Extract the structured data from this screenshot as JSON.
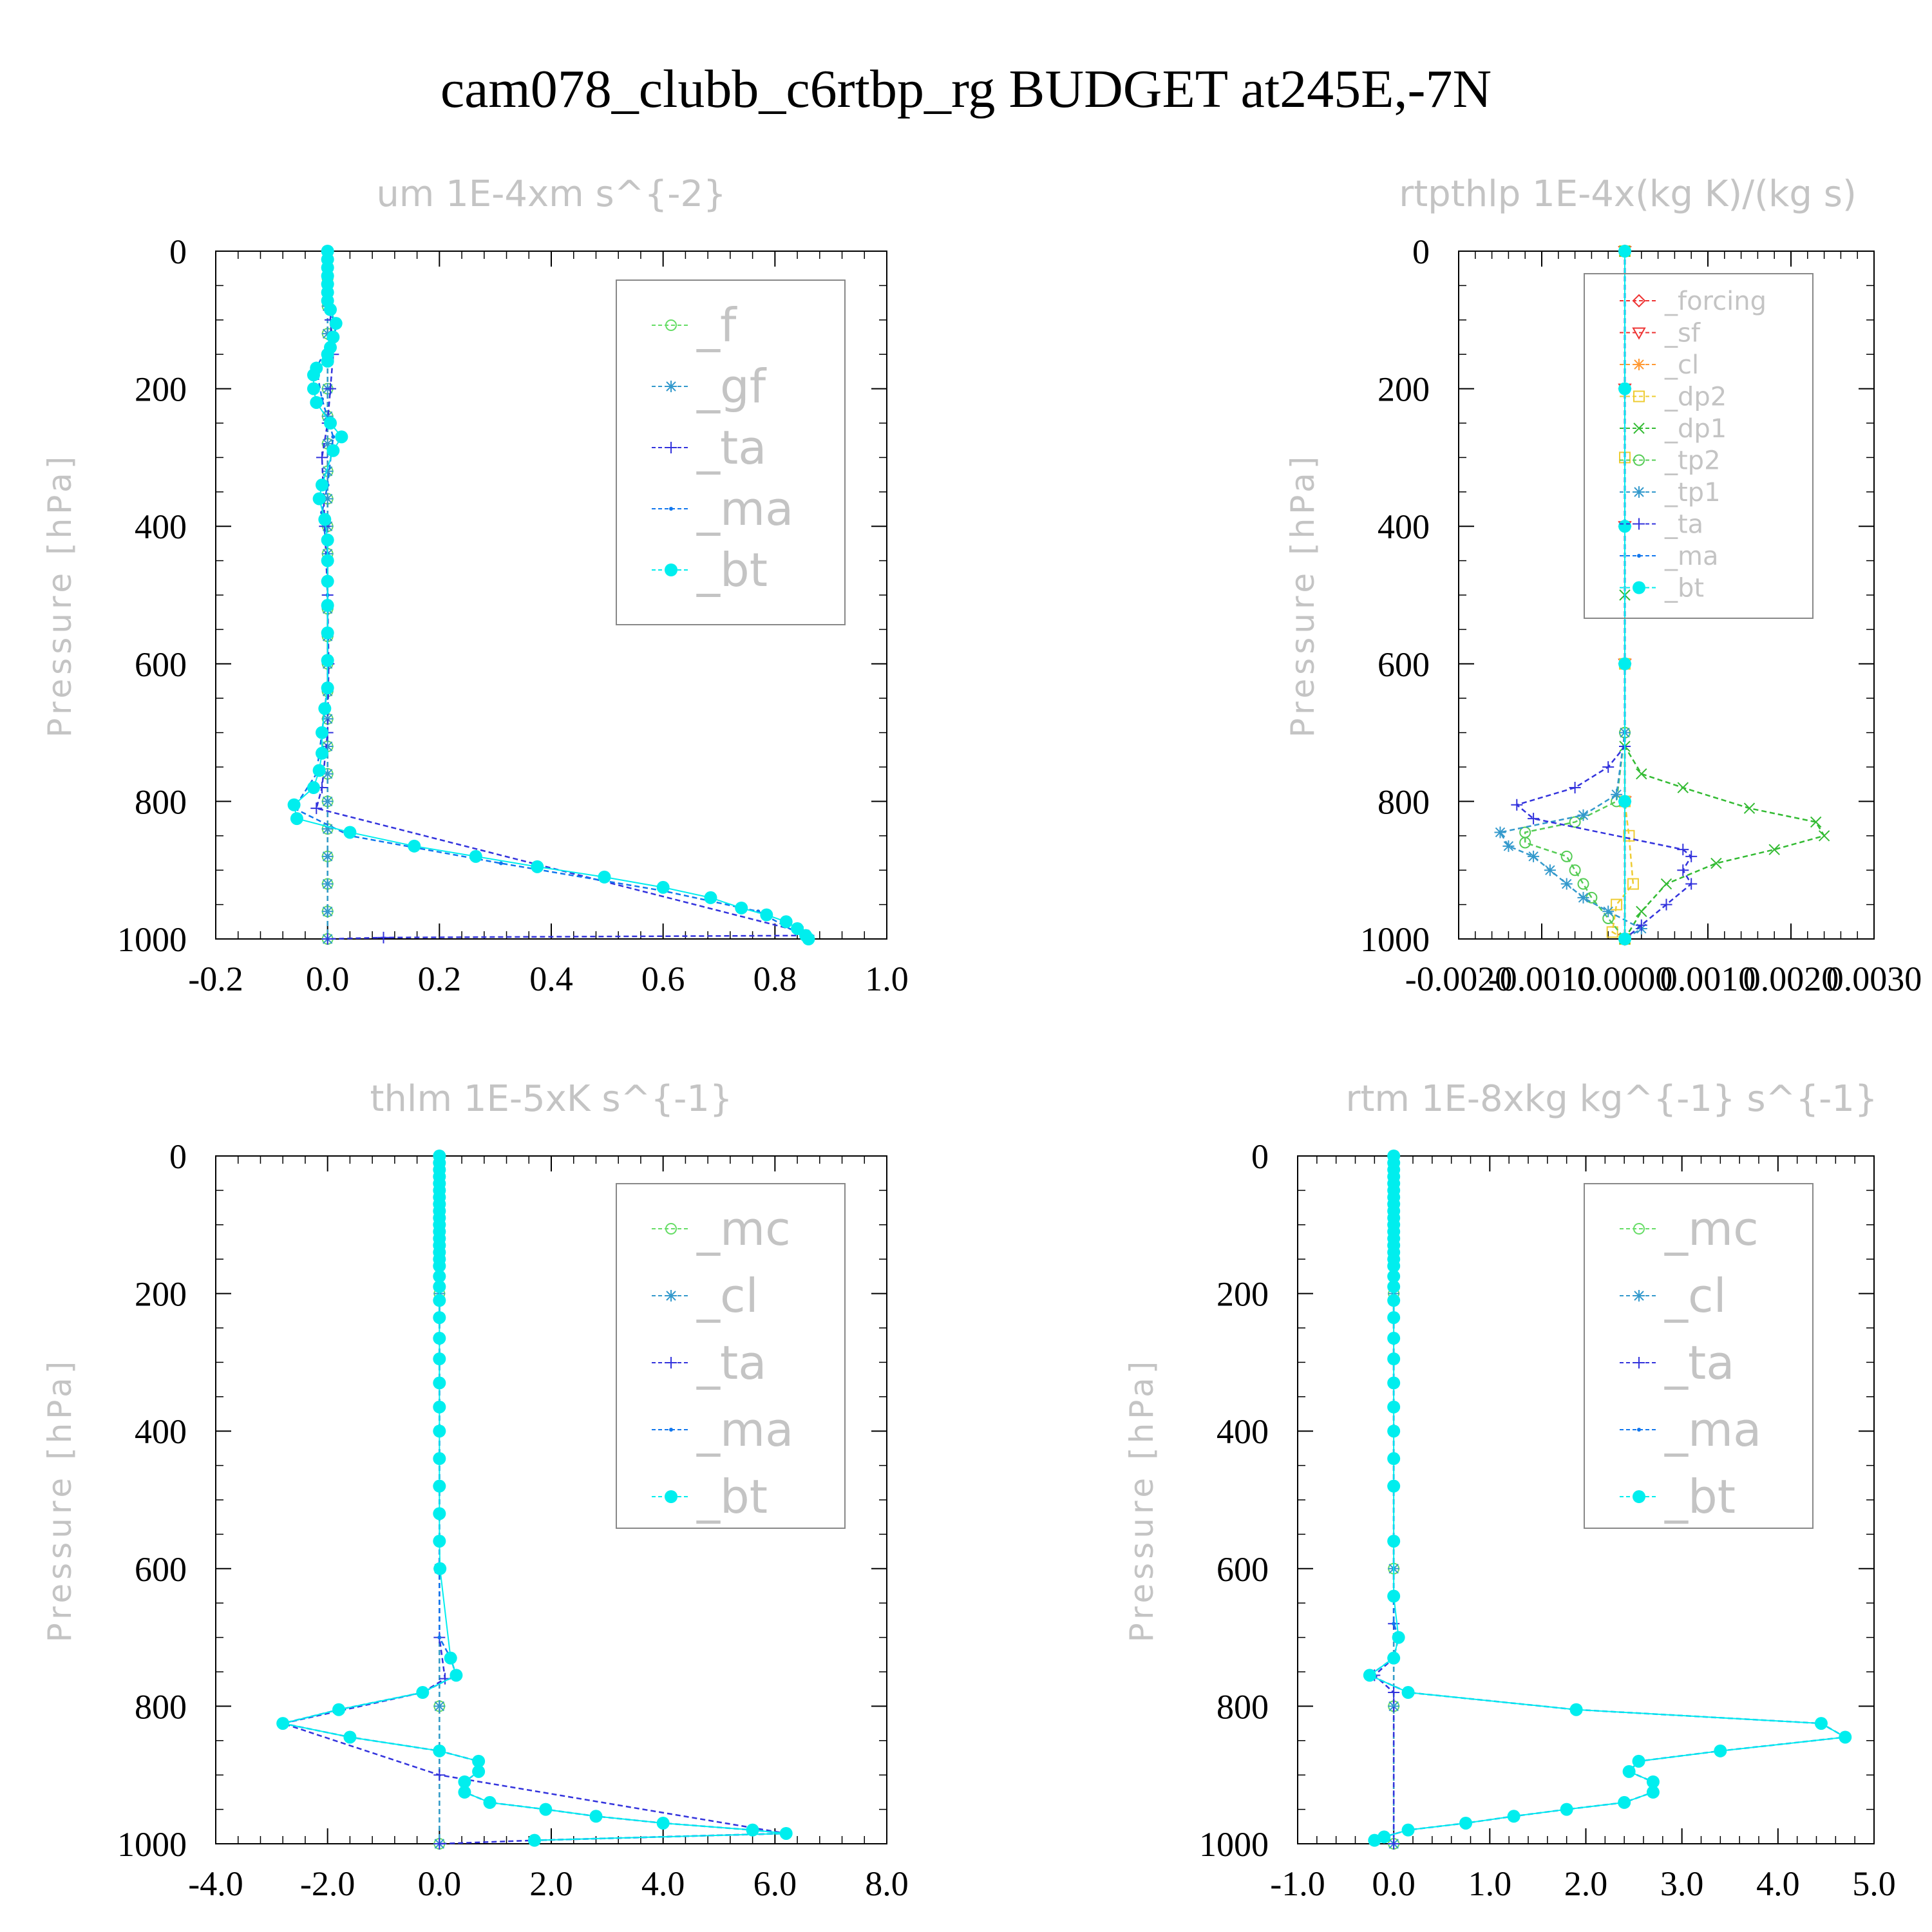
{
  "title": "cam078_clubb_c6rtbp_rg  BUDGET at245E,-7N",
  "chart_data": [
    {
      "type": "line",
      "title": "um   1E-4xm s^{-2}",
      "ylabel": "Pressure [hPa]",
      "ylim": [
        1000,
        0
      ],
      "xlim": [
        -0.2,
        1.0
      ],
      "xticks": [
        "-0.2",
        "0.0",
        "0.2",
        "0.4",
        "0.6",
        "0.8",
        "1.0"
      ],
      "yticks": [
        "0",
        "200",
        "400",
        "600",
        "800",
        "1000"
      ],
      "legend": [
        "_f",
        "_gf",
        "_ta",
        "_ma",
        "_bt"
      ],
      "series": [
        {
          "name": "_f",
          "color": "#66dd66",
          "x": [
            0,
            0,
            0,
            0,
            0,
            0,
            0,
            0,
            0,
            0,
            0,
            0,
            0,
            0,
            0,
            0,
            0,
            0,
            0,
            0,
            0,
            0,
            0,
            0,
            0,
            0
          ],
          "y": [
            0,
            40,
            80,
            120,
            160,
            200,
            240,
            280,
            320,
            360,
            400,
            440,
            480,
            520,
            560,
            600,
            640,
            680,
            720,
            760,
            800,
            840,
            880,
            920,
            960,
            1000
          ]
        },
        {
          "name": "_gf",
          "color": "#3399cc",
          "x": [
            0,
            0,
            0,
            0,
            0,
            0,
            0,
            0,
            0,
            0,
            0,
            0,
            0,
            0,
            0,
            0,
            0,
            0,
            0,
            0,
            0,
            0,
            0,
            0,
            0,
            0
          ],
          "y": [
            0,
            40,
            80,
            120,
            160,
            200,
            240,
            280,
            320,
            360,
            400,
            440,
            480,
            520,
            560,
            600,
            640,
            680,
            720,
            760,
            800,
            840,
            880,
            920,
            960,
            1000
          ]
        },
        {
          "name": "_ta",
          "color": "#3333dd",
          "x": [
            0,
            0.005,
            0.01,
            0.005,
            0,
            -0.01,
            -0.005,
            0,
            0.002,
            0,
            -0.01,
            -0.02,
            0.85,
            0.86,
            0.1,
            0
          ],
          "y": [
            0,
            100,
            150,
            200,
            250,
            300,
            400,
            500,
            600,
            700,
            780,
            810,
            990,
            995,
            998,
            1000
          ]
        },
        {
          "name": "_ma",
          "color": "#1177ee",
          "x": [
            0,
            0,
            0,
            0.02,
            -0.02,
            -0.01,
            0.01,
            0,
            -0.01,
            0,
            0,
            0,
            0,
            -0.01,
            -0.02,
            -0.06,
            0.04,
            0.31,
            0.6,
            0.77,
            0.86
          ],
          "y": [
            0,
            50,
            90,
            105,
            170,
            215,
            270,
            340,
            380,
            440,
            500,
            560,
            630,
            700,
            760,
            810,
            850,
            890,
            930,
            960,
            1000
          ]
        },
        {
          "name": "_bt",
          "color": "#00eeee",
          "marker": "dot",
          "x": [
            0,
            0,
            0,
            0,
            0,
            0,
            0,
            0.005,
            0.015,
            0.01,
            0.005,
            0,
            0,
            -0.02,
            -0.025,
            -0.025,
            -0.02,
            0.005,
            0.025,
            0.01,
            -0.01,
            -0.015,
            -0.005,
            0,
            0,
            0,
            0,
            0,
            0,
            0,
            -0.005,
            -0.01,
            -0.01,
            -0.015,
            -0.025,
            -0.06,
            -0.055,
            0.04,
            0.155,
            0.265,
            0.375,
            0.495,
            0.6,
            0.685,
            0.74,
            0.785,
            0.82,
            0.84,
            0.855,
            0.86
          ],
          "y": [
            0,
            12,
            24,
            36,
            48,
            60,
            72,
            85,
            105,
            125,
            140,
            150,
            160,
            170,
            180,
            200,
            220,
            250,
            270,
            290,
            340,
            360,
            390,
            420,
            450,
            480,
            515,
            555,
            595,
            635,
            665,
            700,
            730,
            755,
            780,
            805,
            825,
            845,
            865,
            880,
            895,
            910,
            925,
            940,
            955,
            965,
            975,
            985,
            995,
            1000
          ]
        }
      ]
    },
    {
      "type": "line",
      "title": "rtpthlp   1E-4x(kg K)/(kg s)",
      "ylabel": "Pressure [hPa]",
      "ylim": [
        1000,
        0
      ],
      "xlim": [
        -0.002,
        0.003
      ],
      "xticks": [
        "-0.0020",
        "-0.0010",
        "0.0000",
        "0.0010",
        "0.0020",
        "0.0030"
      ],
      "yticks": [
        "0",
        "200",
        "400",
        "600",
        "800",
        "1000"
      ],
      "legend": [
        "_forcing",
        "_sf",
        "_cl",
        "_dp2",
        "_dp1",
        "_tp2",
        "_tp1",
        "_ta",
        "_ma",
        "_bt"
      ],
      "series": [
        {
          "name": "_forcing",
          "color": "#ee3333",
          "x": [
            0,
            0,
            0,
            0,
            0,
            0
          ],
          "y": [
            0,
            200,
            400,
            600,
            800,
            1000
          ]
        },
        {
          "name": "_sf",
          "color": "#ee3333",
          "x": [
            0,
            0,
            0,
            0,
            0,
            0
          ],
          "y": [
            0,
            200,
            400,
            600,
            800,
            1000
          ]
        },
        {
          "name": "_cl",
          "color": "#ff9933",
          "x": [
            0,
            0,
            0,
            0,
            0,
            0
          ],
          "y": [
            0,
            200,
            400,
            600,
            800,
            1000
          ]
        },
        {
          "name": "_dp2",
          "color": "#eecc33",
          "x": [
            0,
            0,
            0,
            0,
            5e-05,
            0.0001,
            -0.0001,
            -0.00015,
            0
          ],
          "y": [
            0,
            300,
            600,
            800,
            850,
            920,
            950,
            990,
            1000
          ]
        },
        {
          "name": "_dp1",
          "color": "#33bb33",
          "x": [
            0,
            0,
            0,
            0.0002,
            0.0007,
            0.0015,
            0.0023,
            0.0024,
            0.0018,
            0.0011,
            0.0005,
            0.0002,
            0
          ],
          "y": [
            0,
            500,
            720,
            760,
            780,
            810,
            830,
            850,
            870,
            890,
            920,
            960,
            1000
          ]
        },
        {
          "name": "_tp2",
          "color": "#55cc55",
          "x": [
            0,
            0,
            -0.0001,
            -0.0006,
            -0.0012,
            -0.0012,
            -0.0007,
            -0.0006,
            -0.0005,
            -0.0004,
            -0.0002,
            0
          ],
          "y": [
            0,
            700,
            800,
            830,
            845,
            860,
            880,
            900,
            920,
            940,
            970,
            1000
          ]
        },
        {
          "name": "_tp1",
          "color": "#3399cc",
          "x": [
            0,
            0,
            -0.0001,
            -0.0005,
            -0.0015,
            -0.0014,
            -0.0011,
            -0.0009,
            -0.0007,
            -0.0005,
            -0.0002,
            0.0002,
            0
          ],
          "y": [
            0,
            700,
            790,
            820,
            845,
            865,
            880,
            900,
            920,
            940,
            960,
            985,
            1000
          ]
        },
        {
          "name": "_ta",
          "color": "#3333dd",
          "x": [
            0,
            0,
            -0.0002,
            -0.0006,
            -0.0013,
            -0.0011,
            0.0007,
            0.0008,
            0.0007,
            0.0008,
            0.0005,
            0.0002,
            0
          ],
          "y": [
            0,
            720,
            750,
            780,
            805,
            825,
            870,
            880,
            900,
            920,
            950,
            980,
            1000
          ]
        },
        {
          "name": "_ma",
          "color": "#1177ee",
          "x": [
            0,
            0,
            0,
            0,
            0,
            0
          ],
          "y": [
            0,
            200,
            400,
            600,
            800,
            1000
          ]
        },
        {
          "name": "_bt",
          "color": "#00eeee",
          "marker": "dot",
          "x": [
            0,
            0,
            0,
            0,
            0,
            0
          ],
          "y": [
            0,
            200,
            400,
            600,
            800,
            1000
          ]
        }
      ]
    },
    {
      "type": "line",
      "title": "thlm   1E-5xK s^{-1}",
      "ylabel": "Pressure [hPa]",
      "ylim": [
        1000,
        0
      ],
      "xlim": [
        -4.0,
        8.0
      ],
      "xticks": [
        "-4.0",
        "-2.0",
        "0.0",
        "2.0",
        "4.0",
        "6.0",
        "8.0"
      ],
      "yticks": [
        "0",
        "200",
        "400",
        "600",
        "800",
        "1000"
      ],
      "legend": [
        "_mc",
        "_cl",
        "_ta",
        "_ma",
        "_bt"
      ],
      "series": [
        {
          "name": "_mc",
          "color": "#66dd66",
          "x": [
            0,
            0,
            0,
            0,
            0,
            0
          ],
          "y": [
            0,
            200,
            400,
            600,
            800,
            1000
          ]
        },
        {
          "name": "_cl",
          "color": "#3399cc",
          "x": [
            0,
            0,
            0,
            0,
            0,
            0
          ],
          "y": [
            0,
            200,
            400,
            600,
            800,
            1000
          ]
        },
        {
          "name": "_ta",
          "color": "#3333dd",
          "x": [
            0,
            0,
            0,
            0.1,
            -0.3,
            -2.8,
            0,
            6.2,
            1.7,
            0
          ],
          "y": [
            0,
            400,
            700,
            760,
            780,
            825,
            900,
            985,
            995,
            1000
          ]
        },
        {
          "name": "_ma",
          "color": "#1177ee",
          "x": [
            0,
            0,
            0,
            0.2,
            0.3,
            -0.3,
            -1.8,
            -2.8,
            -1.6,
            0,
            0.7,
            0.7,
            0.45,
            0.45,
            0.9,
            1.9,
            2.8,
            4.0,
            5.6,
            6.2,
            1.7
          ],
          "y": [
            0,
            400,
            700,
            730,
            755,
            780,
            805,
            825,
            845,
            865,
            880,
            895,
            910,
            925,
            940,
            950,
            960,
            970,
            980,
            985,
            995
          ]
        },
        {
          "name": "_bt",
          "color": "#00eeee",
          "marker": "dot",
          "x": [
            0,
            0,
            0,
            0,
            0,
            0,
            0,
            0,
            0,
            0,
            0,
            0,
            0,
            0,
            0,
            0,
            0,
            0,
            0,
            0,
            0,
            0,
            0,
            0,
            0,
            0,
            0,
            0,
            0,
            0,
            0.01,
            0.2,
            0.3,
            -0.3,
            -1.8,
            -2.8,
            -1.6,
            0,
            0.7,
            0.7,
            0.45,
            0.45,
            0.9,
            1.9,
            2.8,
            4.0,
            5.6,
            6.2,
            1.7
          ],
          "y": [
            0,
            10,
            20,
            30,
            40,
            50,
            60,
            70,
            80,
            90,
            100,
            110,
            120,
            130,
            140,
            150,
            160,
            175,
            190,
            210,
            235,
            265,
            295,
            330,
            365,
            400,
            440,
            480,
            520,
            560,
            600,
            730,
            755,
            780,
            805,
            825,
            845,
            865,
            880,
            895,
            910,
            925,
            940,
            950,
            960,
            970,
            980,
            985,
            995
          ]
        }
      ]
    },
    {
      "type": "line",
      "title": "rtm   1E-8xkg kg^{-1} s^{-1}",
      "ylabel": "Pressure [hPa]",
      "ylim": [
        1000,
        0
      ],
      "xlim": [
        -1.0,
        5.0
      ],
      "xticks": [
        "-1.0",
        "0.0",
        "1.0",
        "2.0",
        "3.0",
        "4.0",
        "5.0"
      ],
      "yticks": [
        "0",
        "200",
        "400",
        "600",
        "800",
        "1000"
      ],
      "legend": [
        "_mc",
        "_cl",
        "_ta",
        "_ma",
        "_bt"
      ],
      "series": [
        {
          "name": "_mc",
          "color": "#66dd66",
          "x": [
            0,
            0,
            0,
            0,
            0,
            0
          ],
          "y": [
            0,
            200,
            400,
            600,
            800,
            1000
          ]
        },
        {
          "name": "_cl",
          "color": "#3399cc",
          "x": [
            0,
            0,
            0,
            0,
            0,
            0
          ],
          "y": [
            0,
            200,
            400,
            600,
            800,
            1000
          ]
        },
        {
          "name": "_ta",
          "color": "#3333dd",
          "x": [
            0,
            0,
            0,
            0.05,
            0,
            -0.2,
            0,
            0
          ],
          "y": [
            0,
            400,
            680,
            700,
            730,
            755,
            780,
            1000
          ]
        },
        {
          "name": "_ma",
          "color": "#1177ee",
          "x": [
            0,
            0,
            0,
            0.05,
            0,
            -0.25,
            0.15,
            1.9,
            4.45,
            4.7,
            3.4,
            2.55,
            2.45,
            2.7,
            2.7,
            2.4,
            1.8,
            1.25,
            0.75,
            0.15,
            -0.1,
            -0.2
          ],
          "y": [
            0,
            400,
            680,
            700,
            730,
            755,
            780,
            805,
            825,
            845,
            865,
            880,
            895,
            910,
            925,
            940,
            950,
            960,
            970,
            980,
            990,
            995
          ]
        },
        {
          "name": "_bt",
          "color": "#00eeee",
          "marker": "dot",
          "x": [
            0,
            0,
            0,
            0,
            0,
            0,
            0,
            0,
            0,
            0,
            0,
            0,
            0,
            0,
            0,
            0,
            0,
            0,
            0,
            0,
            0,
            0,
            0,
            0,
            0,
            0,
            0,
            0,
            0,
            0,
            0.05,
            0,
            -0.25,
            0.15,
            1.9,
            4.45,
            4.7,
            3.4,
            2.55,
            2.45,
            2.7,
            2.7,
            2.4,
            1.8,
            1.25,
            0.75,
            0.15,
            -0.1,
            -0.2
          ],
          "y": [
            0,
            10,
            20,
            30,
            40,
            50,
            60,
            70,
            80,
            90,
            100,
            110,
            120,
            130,
            140,
            150,
            160,
            175,
            190,
            210,
            235,
            265,
            295,
            330,
            365,
            400,
            440,
            480,
            560,
            640,
            700,
            730,
            755,
            780,
            805,
            825,
            845,
            865,
            880,
            895,
            910,
            925,
            940,
            950,
            960,
            970,
            980,
            990,
            995
          ]
        }
      ]
    }
  ]
}
